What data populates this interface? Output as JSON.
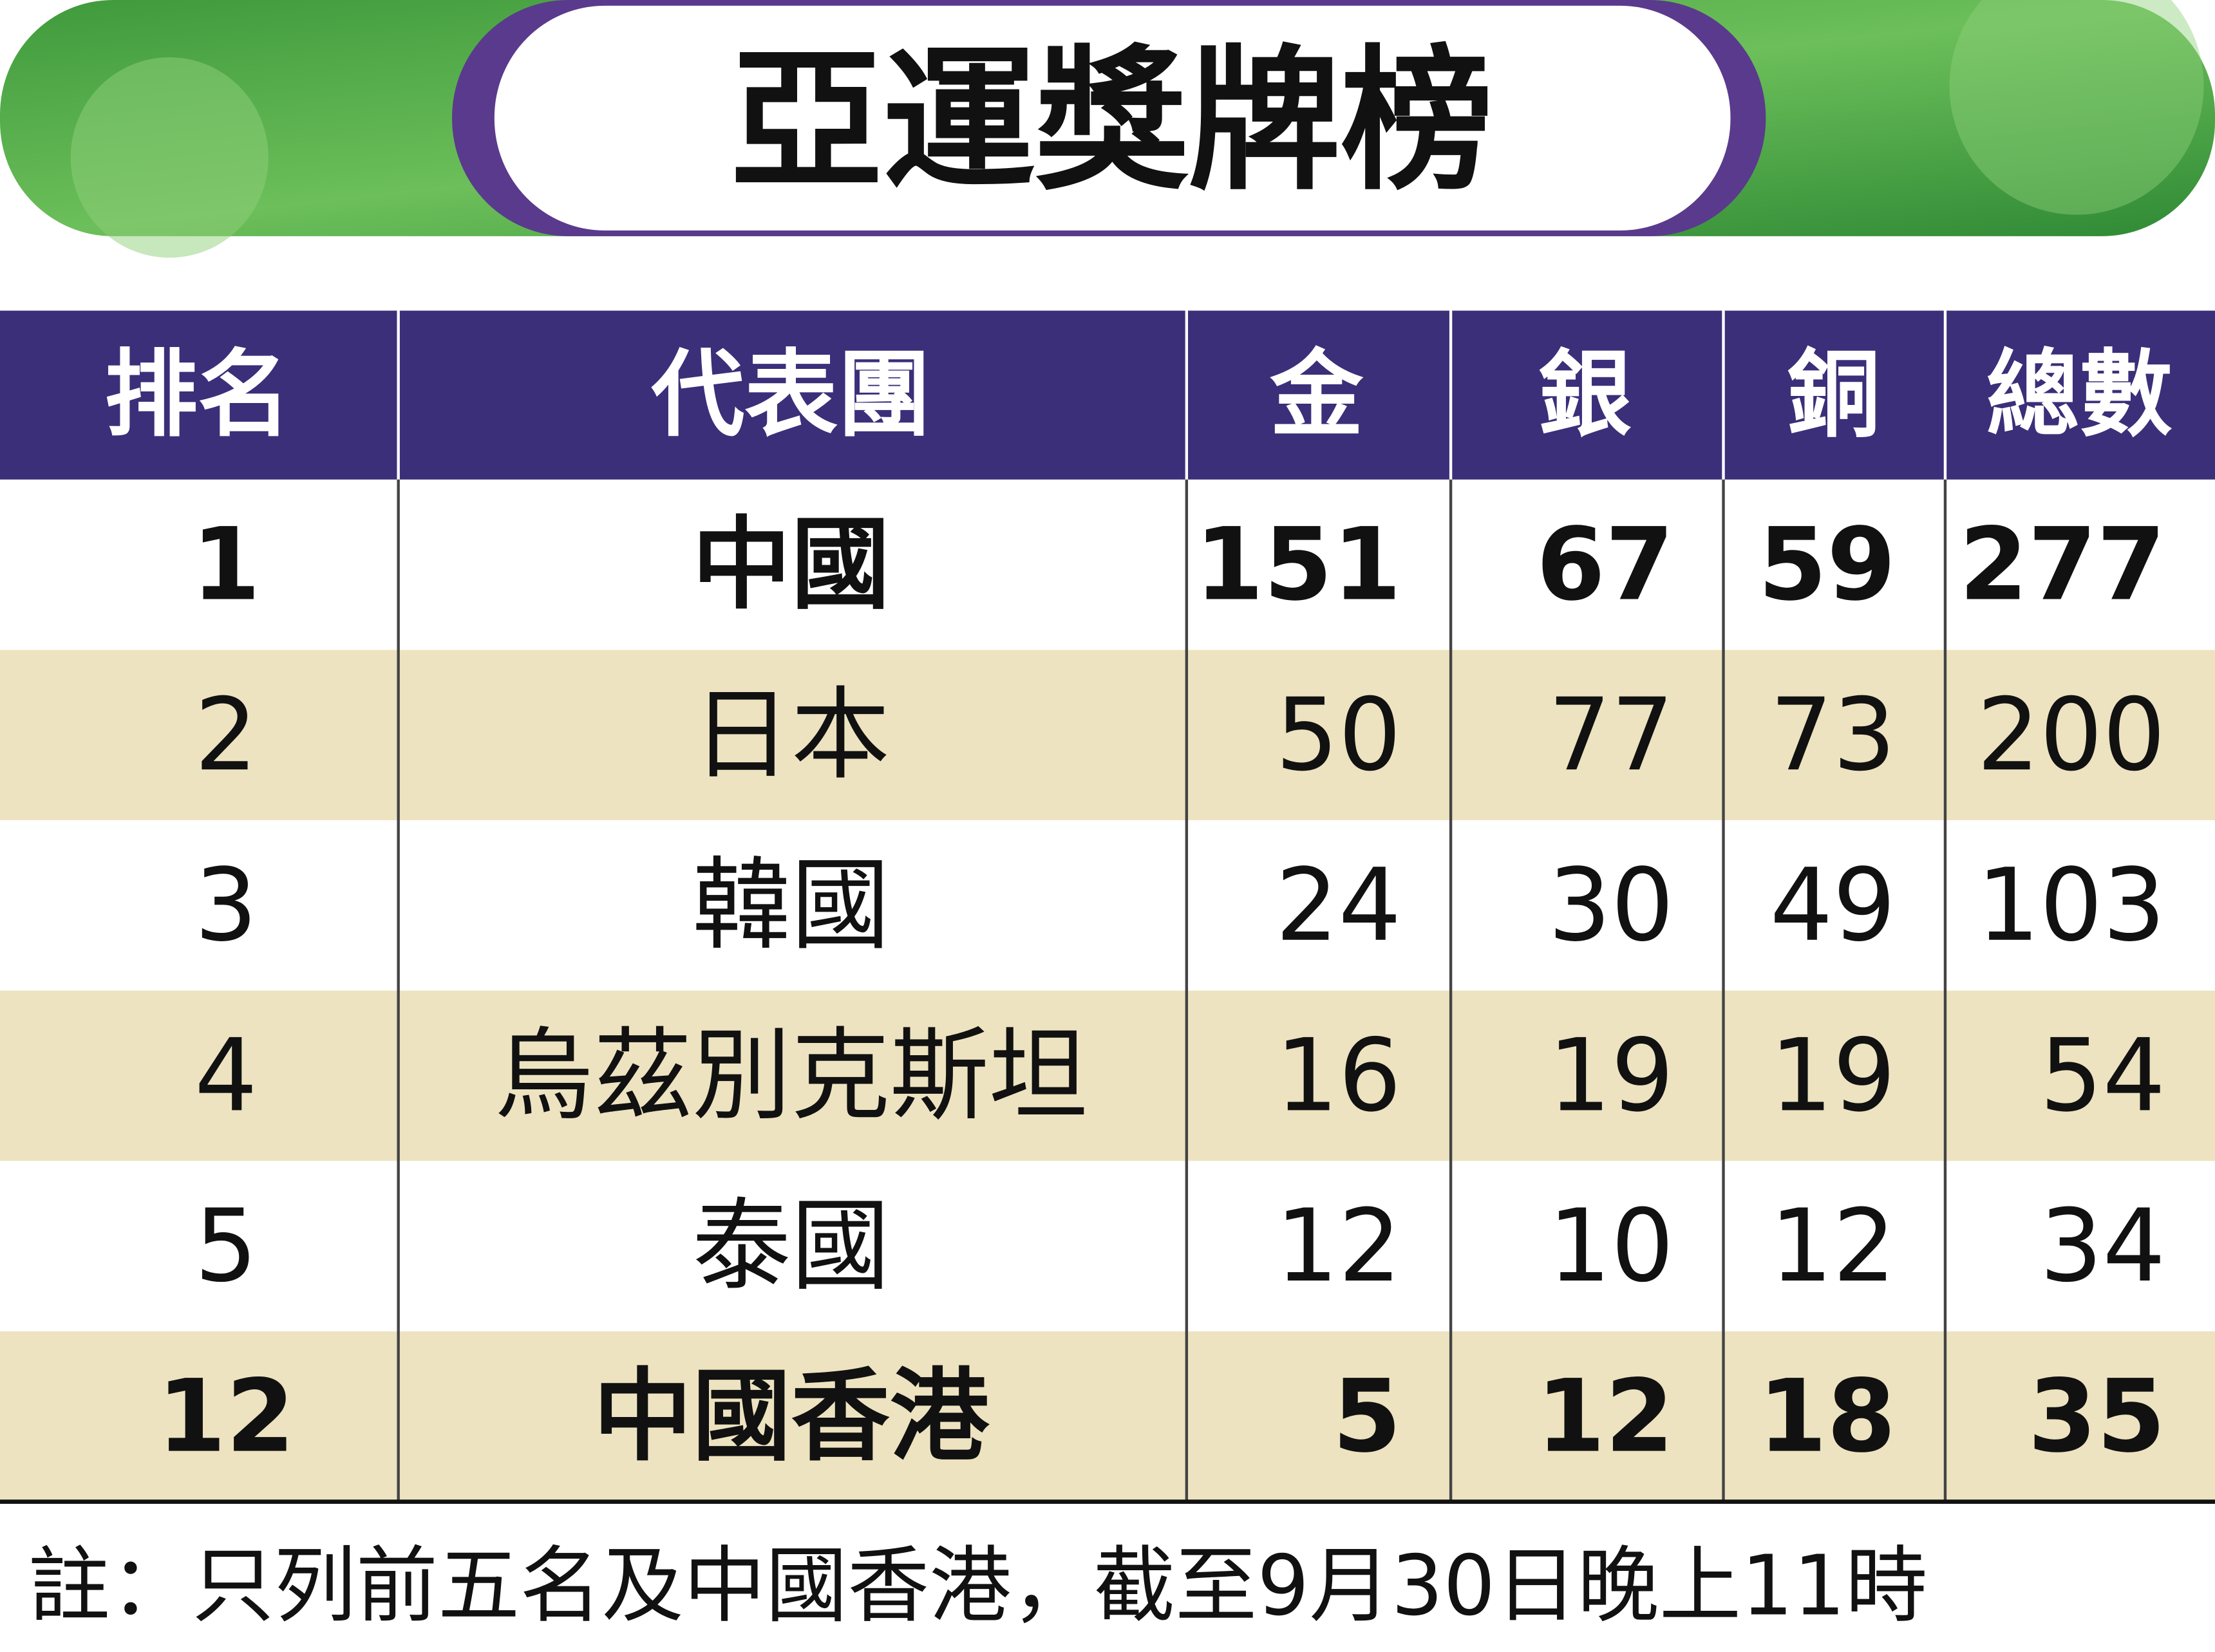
{
  "title": "亞運獎牌榜",
  "table": {
    "header": [
      "排名",
      "代表團",
      "金",
      "銀",
      "銅",
      "總數"
    ],
    "rows": [
      [
        1,
        "中國",
        151,
        67,
        59,
        277
      ],
      [
        2,
        "日本",
        50,
        77,
        73,
        200
      ],
      [
        3,
        "韓國",
        24,
        30,
        49,
        103
      ],
      [
        4,
        "烏茲別克斯坦",
        16,
        19,
        19,
        54
      ],
      [
        5,
        "泰國",
        12,
        10,
        12,
        34
      ],
      [
        12,
        "中國香港",
        5,
        12,
        18,
        35
      ]
    ]
  },
  "note": "註：只列前五名及中國香港，截至9月30日晚上11時"
}
